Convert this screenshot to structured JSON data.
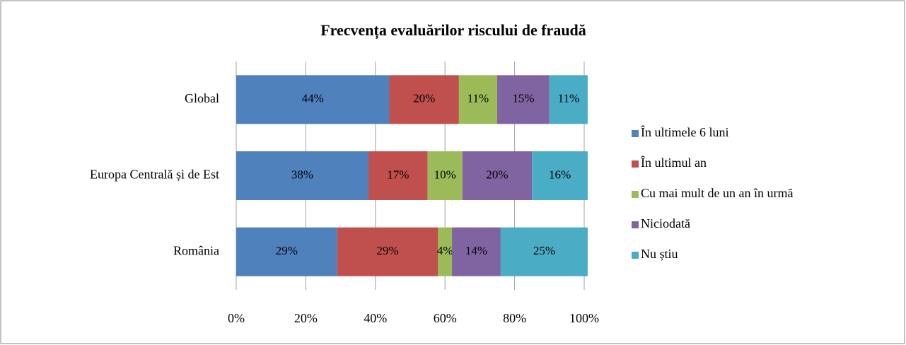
{
  "chart_data": {
    "type": "stacked_barh",
    "title": "Frecvența evaluărilor riscului de fraudă",
    "categories": [
      "Global",
      "Europa Centrală și de Est",
      "România"
    ],
    "series": [
      {
        "name": "În ultimele 6 luni",
        "color": "#4f81bd",
        "values": [
          44,
          38,
          29
        ],
        "value_labels": [
          "44%",
          "38%",
          "29%"
        ]
      },
      {
        "name": "În ultimul an",
        "color": "#c0504d",
        "values": [
          20,
          17,
          29
        ],
        "value_labels": [
          "20%",
          "17%",
          "29%"
        ]
      },
      {
        "name": "Cu mai mult de un an în urmă",
        "color": "#9bbb59",
        "values": [
          11,
          10,
          4
        ],
        "value_labels": [
          "11%",
          "10%",
          "4%"
        ]
      },
      {
        "name": "Niciodată",
        "color": "#8064a2",
        "values": [
          15,
          20,
          14
        ],
        "value_labels": [
          "15%",
          "20%",
          "14%"
        ]
      },
      {
        "name": "Nu știu",
        "color": "#4bacc6",
        "values": [
          11,
          16,
          25
        ],
        "value_labels": [
          "11%",
          "16%",
          "25%"
        ]
      }
    ],
    "xlim": [
      0,
      100
    ],
    "xticks": [
      {
        "value": 0,
        "label": "0%"
      },
      {
        "value": 20,
        "label": "20%"
      },
      {
        "value": 40,
        "label": "40%"
      },
      {
        "value": 60,
        "label": "60%"
      },
      {
        "value": 80,
        "label": "80%"
      },
      {
        "value": 100,
        "label": "100%"
      }
    ],
    "grid": true,
    "legend": "right"
  }
}
